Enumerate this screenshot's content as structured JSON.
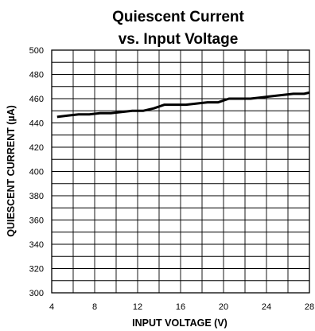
{
  "chart_data": {
    "type": "line",
    "title_lines": [
      "Quiescent Current",
      "vs. Input Voltage"
    ],
    "xlabel": "INPUT VOLTAGE (V)",
    "ylabel": "QUIESCENT CURRENT (µA)",
    "xlim": [
      4,
      28
    ],
    "ylim": [
      300,
      500
    ],
    "x_ticks": [
      4,
      8,
      12,
      16,
      20,
      24,
      28
    ],
    "y_ticks": [
      300,
      320,
      340,
      360,
      380,
      400,
      420,
      440,
      460,
      480,
      500
    ],
    "x_minor_step": 2,
    "y_minor_step": 10,
    "grid": true,
    "series": [
      {
        "color": "#000000",
        "x": [
          4.5,
          5.5,
          6.5,
          7.5,
          8.5,
          9.5,
          10.5,
          11.5,
          12.5,
          13.5,
          14.5,
          15.5,
          16.5,
          17.5,
          18.5,
          19.5,
          20.5,
          21.5,
          22.5,
          23.5,
          24.5,
          25.5,
          26.5,
          27.5,
          28
        ],
        "y": [
          445,
          446,
          447,
          447,
          448,
          448,
          449,
          450,
          450,
          452,
          455,
          455,
          455,
          456,
          457,
          457,
          460,
          460,
          460,
          461,
          462,
          463,
          464,
          464,
          465
        ]
      }
    ]
  }
}
